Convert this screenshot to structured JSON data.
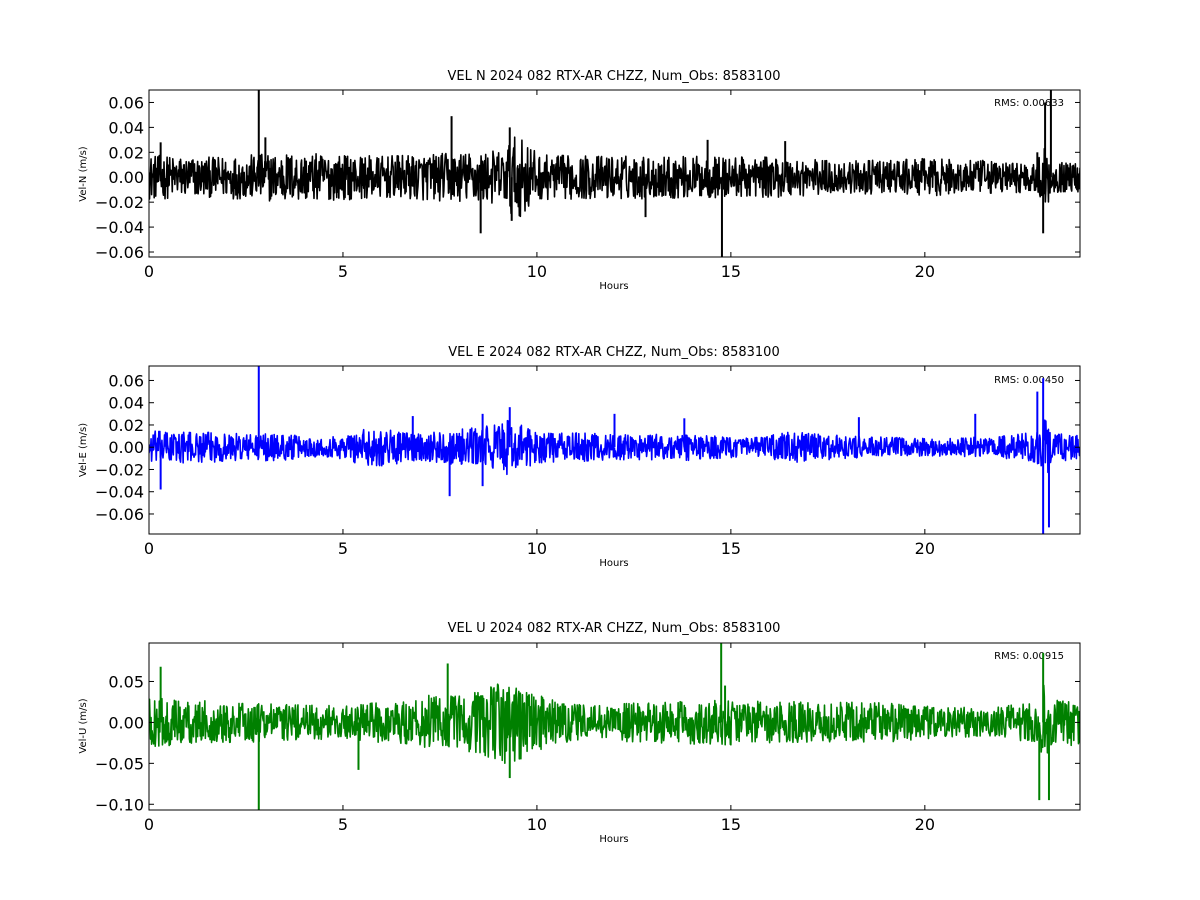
{
  "chart_data": [
    {
      "type": "line",
      "title": "VEL N 2024 082 RTX-AR  CHZZ, Num_Obs: 8583100",
      "xlabel": "Hours",
      "ylabel": "Vel-N (m/s)",
      "xlim": [
        0,
        24
      ],
      "ylim": [
        -0.064,
        0.07
      ],
      "xticks": [
        0,
        5,
        10,
        15,
        20
      ],
      "xtick_labels": [
        "0",
        "5",
        "10",
        "15",
        "20"
      ],
      "yticks": [
        -0.06,
        -0.04,
        -0.02,
        0.0,
        0.02,
        0.04,
        0.06
      ],
      "ytick_labels": [
        "−0.06",
        "−0.04",
        "−0.02",
        "0.00",
        "0.02",
        "0.04",
        "0.06"
      ],
      "color": "#000000",
      "annotation": "RMS:  0.00633",
      "annotation_color": "#0000ff",
      "envelope": [
        [
          0,
          0.018
        ],
        [
          1.5,
          0.016
        ],
        [
          3.5,
          0.02
        ],
        [
          6,
          0.017
        ],
        [
          9.2,
          0.022
        ],
        [
          9.3,
          0.033
        ],
        [
          9.8,
          0.03
        ],
        [
          10,
          0.018
        ],
        [
          14,
          0.017
        ],
        [
          16.5,
          0.016
        ],
        [
          18,
          0.013
        ],
        [
          20,
          0.015
        ],
        [
          22.9,
          0.012
        ],
        [
          23.1,
          0.03
        ],
        [
          23.3,
          0.012
        ],
        [
          24,
          0.012
        ]
      ],
      "spikes": [
        [
          0.3,
          0.028
        ],
        [
          2.83,
          0.07
        ],
        [
          3.0,
          0.032
        ],
        [
          7.8,
          0.049
        ],
        [
          8.55,
          -0.045
        ],
        [
          9.3,
          0.04
        ],
        [
          9.35,
          -0.035
        ],
        [
          12.8,
          -0.032
        ],
        [
          14.77,
          -0.064
        ],
        [
          14.4,
          0.03
        ],
        [
          16.4,
          0.029
        ],
        [
          22.9,
          0.02
        ],
        [
          23.1,
          0.06
        ],
        [
          23.25,
          0.07
        ],
        [
          23.05,
          -0.045
        ]
      ],
      "rms": 0.00633
    },
    {
      "type": "line",
      "title": "VEL E 2024 082 RTX-AR  CHZZ, Num_Obs: 8583100",
      "xlabel": "Hours",
      "ylabel": "Vel-E (m/s)",
      "xlim": [
        0,
        24
      ],
      "ylim": [
        -0.078,
        0.073
      ],
      "xticks": [
        0,
        5,
        10,
        15,
        20
      ],
      "xtick_labels": [
        "0",
        "5",
        "10",
        "15",
        "20"
      ],
      "yticks": [
        -0.06,
        -0.04,
        -0.02,
        0.0,
        0.02,
        0.04,
        0.06
      ],
      "ytick_labels": [
        "−0.06",
        "−0.04",
        "−0.02",
        "0.00",
        "0.02",
        "0.04",
        "0.06"
      ],
      "color": "#0000ff",
      "annotation": "RMS:  0.00450",
      "annotation_color": "#0000ff",
      "envelope": [
        [
          0,
          0.015
        ],
        [
          2,
          0.013
        ],
        [
          3.5,
          0.012
        ],
        [
          4.5,
          0.008
        ],
        [
          5.8,
          0.018
        ],
        [
          7,
          0.012
        ],
        [
          8.5,
          0.018
        ],
        [
          9.3,
          0.025
        ],
        [
          10,
          0.014
        ],
        [
          12,
          0.012
        ],
        [
          14,
          0.012
        ],
        [
          15.5,
          0.008
        ],
        [
          16.5,
          0.014
        ],
        [
          18,
          0.01
        ],
        [
          20,
          0.008
        ],
        [
          22,
          0.01
        ],
        [
          22.9,
          0.015
        ],
        [
          23.1,
          0.03
        ],
        [
          23.3,
          0.012
        ],
        [
          24,
          0.012
        ]
      ],
      "spikes": [
        [
          0.3,
          -0.038
        ],
        [
          2.83,
          0.073
        ],
        [
          6.8,
          0.028
        ],
        [
          7.75,
          -0.044
        ],
        [
          8.6,
          0.03
        ],
        [
          9.3,
          0.036
        ],
        [
          8.6,
          -0.035
        ],
        [
          12.0,
          0.03
        ],
        [
          13.8,
          0.026
        ],
        [
          18.3,
          0.027
        ],
        [
          21.3,
          0.03
        ],
        [
          22.9,
          0.05
        ],
        [
          23.05,
          0.062
        ],
        [
          23.05,
          -0.078
        ],
        [
          23.2,
          -0.072
        ]
      ],
      "rms": 0.0045
    },
    {
      "type": "line",
      "title": "VEL U 2024 082 RTX-AR  CHZZ, Num_Obs: 8583100",
      "xlabel": "Hours",
      "ylabel": "Vel-U (m/s)",
      "xlim": [
        0,
        24
      ],
      "ylim": [
        -0.107,
        0.097
      ],
      "xticks": [
        0,
        5,
        10,
        15,
        20
      ],
      "xtick_labels": [
        "0",
        "5",
        "10",
        "15",
        "20"
      ],
      "yticks": [
        -0.1,
        -0.05,
        0.0,
        0.05
      ],
      "ytick_labels": [
        "−0.10",
        "−0.05",
        "0.00",
        "0.05"
      ],
      "color": "#008000",
      "annotation": "RMS:  0.00915",
      "annotation_color": "#0000ff",
      "envelope": [
        [
          0,
          0.03
        ],
        [
          2,
          0.025
        ],
        [
          4,
          0.022
        ],
        [
          5,
          0.02
        ],
        [
          6,
          0.025
        ],
        [
          7.5,
          0.035
        ],
        [
          8.5,
          0.038
        ],
        [
          9.3,
          0.055
        ],
        [
          10,
          0.035
        ],
        [
          11,
          0.022
        ],
        [
          13,
          0.025
        ],
        [
          15,
          0.028
        ],
        [
          17,
          0.025
        ],
        [
          19,
          0.025
        ],
        [
          20.5,
          0.018
        ],
        [
          22,
          0.02
        ],
        [
          22.9,
          0.025
        ],
        [
          23.1,
          0.05
        ],
        [
          23.3,
          0.03
        ],
        [
          24,
          0.028
        ]
      ],
      "spikes": [
        [
          0.3,
          0.068
        ],
        [
          2.83,
          -0.107
        ],
        [
          7.7,
          0.072
        ],
        [
          5.4,
          -0.058
        ],
        [
          9.3,
          -0.068
        ],
        [
          14.75,
          0.097
        ],
        [
          14.85,
          0.045
        ],
        [
          22.95,
          -0.095
        ],
        [
          23.05,
          0.085
        ],
        [
          23.2,
          -0.095
        ]
      ],
      "rms": 0.00915
    }
  ]
}
